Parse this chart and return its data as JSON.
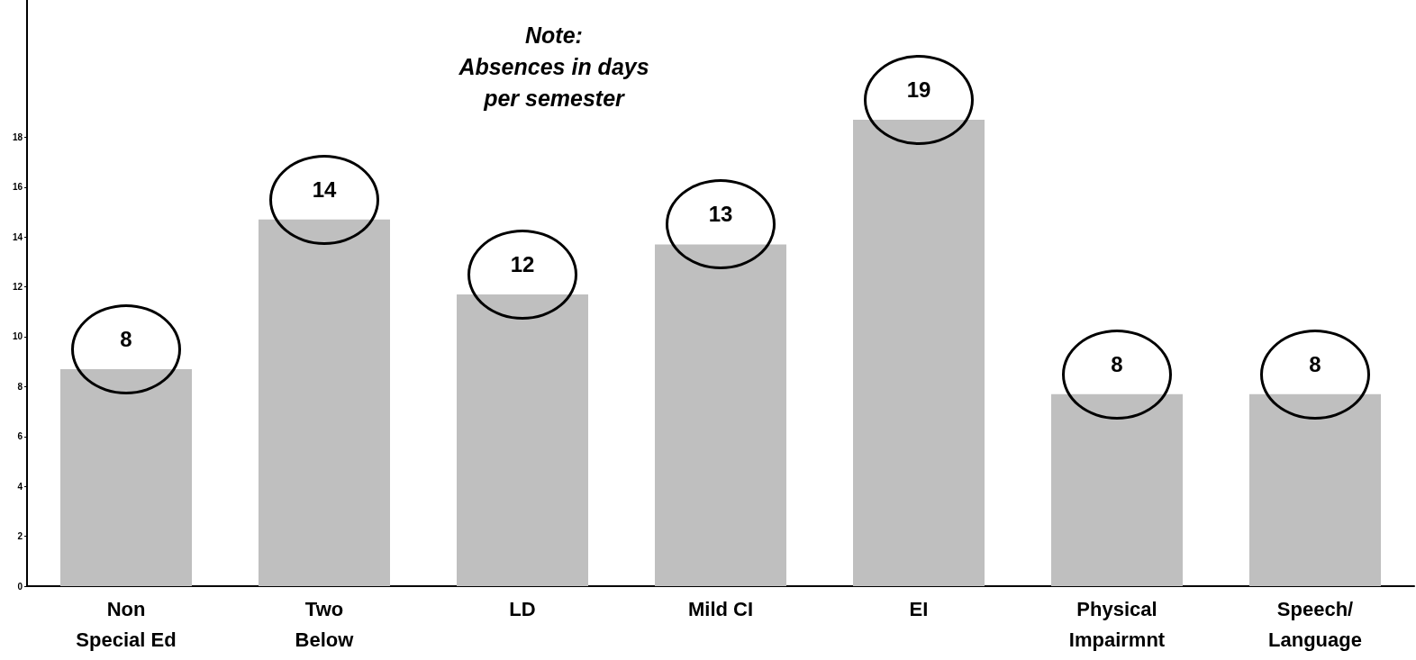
{
  "chart_data": {
    "type": "bar",
    "categories": [
      "Non\nSpecial Ed",
      "Two\nBelow",
      "LD",
      "Mild CI",
      "EI",
      "Physical\nImpairmnt",
      "Speech/\nLanguage"
    ],
    "values": [
      8.7,
      14.7,
      11.7,
      13.7,
      18.7,
      7.7,
      7.7
    ],
    "color": "#bfbfbf",
    "ylim": [
      0,
      23.5
    ],
    "yticks": [
      0,
      2,
      4,
      6,
      8,
      10,
      12,
      14,
      16,
      18
    ],
    "grid": false,
    "annotations": [
      "Note:\nAbsences in days\nper semester",
      {
        "text": "8",
        "x": "Non\nSpecial Ed",
        "y": 8.7
      },
      {
        "text": "14",
        "x": "Two\nBelow",
        "y": 14.7
      },
      {
        "text": "12",
        "x": "LD",
        "y": 11.7
      },
      {
        "text": "13",
        "x": "Mild CI",
        "y": 13.7
      },
      {
        "text": "19",
        "x": "EI",
        "y": 18.7
      },
      {
        "text": "8",
        "x": "Physical\nImpairmnt",
        "y": 7.7
      },
      {
        "text": "8",
        "x": "Speech/\nLanguage",
        "y": 7.7
      }
    ]
  }
}
